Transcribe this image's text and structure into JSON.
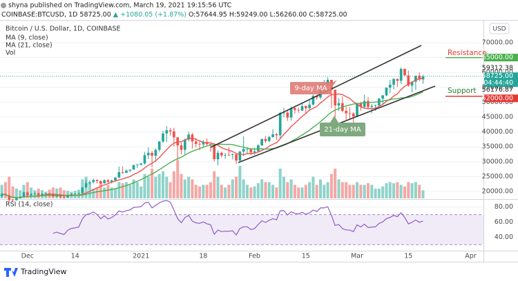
{
  "header": {
    "published": "shyna published on TradingView.com, March 19, 2021 19:15:56 UTC",
    "symbol": "COINBASE:BTCUSD, 1D",
    "last": "58725.00",
    "change": "▲ +1080.05 (+1.87%)",
    "ohlc": "O:57644.95 H:59249.00 L:56260.00 C:58725.00"
  },
  "currency_button": "USD",
  "footer": {
    "brand": "TradingView"
  },
  "chart_data": {
    "type": "candlestick",
    "title": "Bitcoin / U.S. Dollar, 1D, COINBASE",
    "categories": [
      null,
      null,
      null,
      null,
      null,
      null,
      null,
      "Dec",
      null,
      null,
      null,
      null,
      null,
      null,
      null,
      null,
      null,
      null,
      null,
      null,
      "14",
      null,
      null,
      null,
      null,
      null,
      null,
      null,
      null,
      null,
      null,
      null,
      null,
      null,
      null,
      null,
      null,
      null,
      "2021",
      null,
      null,
      null,
      null,
      null,
      null,
      null,
      null,
      null,
      null,
      null,
      null,
      null,
      null,
      null,
      null,
      "18",
      null,
      null,
      null,
      null,
      null,
      null,
      null,
      null,
      null,
      null,
      null,
      null,
      null,
      "Feb",
      null,
      null,
      null,
      null,
      null,
      null,
      null,
      null,
      null,
      null,
      null,
      null,
      null,
      "15",
      null,
      null,
      null,
      null,
      null,
      null,
      null,
      null,
      null,
      null,
      null,
      null,
      null,
      "Mar",
      null,
      null,
      null,
      null,
      null,
      null,
      null,
      null,
      null,
      null,
      null,
      null,
      null,
      "15",
      null,
      null,
      null,
      null,
      null,
      null,
      null,
      null,
      null,
      null,
      null,
      null,
      null,
      null,
      null,
      null,
      "Apr",
      null,
      null,
      null
    ],
    "open": [
      18400,
      19150,
      18730,
      17150,
      17140,
      17720,
      18180,
      19700,
      18790,
      19220,
      19440,
      18700,
      19150,
      19360,
      19170,
      18320,
      18550,
      18250,
      18040,
      18800,
      19170,
      19270,
      19440,
      21350,
      22800,
      23130,
      23860,
      23480,
      22740,
      23820,
      23250,
      23720,
      24700,
      26490,
      26280,
      27040,
      27370,
      28880,
      28990,
      29410,
      32200,
      33000,
      31990,
      34000,
      36800,
      39500,
      40600,
      40200,
      38200,
      35500,
      34000,
      37400,
      39150,
      36800,
      36000,
      35800,
      36630,
      35900,
      35500,
      30850,
      33000,
      32100,
      32300,
      32280,
      32500,
      30400,
      33400,
      34300,
      34300,
      33100,
      33530,
      35500,
      37650,
      36950,
      38300,
      39250,
      38900,
      46400,
      46500,
      44850,
      48000,
      47400,
      47200,
      48700,
      48000,
      49200,
      52150,
      51600,
      55900,
      55900,
      57500,
      54200,
      48900,
      49700,
      47100,
      46300,
      46200,
      45200,
      49600,
      48400,
      50400,
      48400,
      48750,
      48900,
      51200,
      52300,
      54900,
      55900,
      57800,
      57200,
      61200,
      59000,
      55600,
      56900,
      58900,
      57644.95,
      null,
      null,
      null,
      null,
      null,
      null,
      null,
      null,
      null,
      null,
      null,
      null,
      null,
      null,
      null,
      null
    ],
    "high": [
      19500,
      19480,
      18900,
      17500,
      17880,
      18350,
      19850,
      19900,
      19350,
      19600,
      19560,
      19400,
      19420,
      19410,
      19300,
      18950,
      18640,
      18300,
      18950,
      19410,
      19350,
      19570,
      21560,
      23780,
      23800,
      24300,
      24120,
      23800,
      24100,
      24070,
      24000,
      24790,
      28400,
      28420,
      27500,
      27400,
      29000,
      29300,
      29600,
      33300,
      34800,
      33600,
      34500,
      36950,
      40400,
      41950,
      41350,
      41400,
      38300,
      36600,
      37800,
      40100,
      39700,
      37950,
      36900,
      37300,
      37850,
      36400,
      35600,
      33800,
      33450,
      32950,
      34850,
      32900,
      32550,
      33700,
      38500,
      34900,
      34300,
      34700,
      35900,
      37700,
      38600,
      38700,
      40950,
      39700,
      46750,
      48200,
      47300,
      48600,
      48800,
      48200,
      49700,
      49000,
      50600,
      52500,
      52500,
      56350,
      57500,
      58350,
      57550,
      54200,
      51400,
      52000,
      48400,
      48300,
      46700,
      49800,
      50200,
      52600,
      51800,
      49400,
      49200,
      51400,
      52400,
      54900,
      57400,
      58100,
      58000,
      61700,
      61300,
      60600,
      56950,
      58950,
      60000,
      59249,
      null,
      null,
      null,
      null,
      null,
      null,
      null,
      null,
      null,
      null,
      null,
      null,
      null,
      null,
      null,
      null
    ],
    "low": [
      18000,
      18600,
      16300,
      16500,
      16900,
      17600,
      18170,
      18330,
      18500,
      18900,
      18550,
      18550,
      18860,
      18900,
      18170,
      18200,
      17640,
      17600,
      17920,
      18720,
      19000,
      19050,
      19300,
      21230,
      22350,
      22750,
      22700,
      22400,
      22700,
      22600,
      22700,
      23450,
      24500,
      25900,
      26100,
      26500,
      27350,
      27850,
      28700,
      29030,
      30900,
      28130,
      30000,
      33400,
      36300,
      36600,
      38800,
      35100,
      30300,
      32500,
      32400,
      36800,
      34400,
      34800,
      33900,
      34800,
      35200,
      33400,
      30100,
      28800,
      31400,
      30950,
      31950,
      30800,
      29250,
      29900,
      31900,
      32600,
      32200,
      32300,
      33400,
      35370,
      36300,
      36600,
      38100,
      37350,
      37950,
      45000,
      43700,
      43800,
      46200,
      46400,
      47000,
      46200,
      47000,
      48900,
      50800,
      50950,
      53700,
      55500,
      48000,
      45000,
      47000,
      46700,
      44100,
      44200,
      43000,
      45000,
      47100,
      48100,
      47500,
      46300,
      47100,
      48550,
      49300,
      52000,
      53000,
      54300,
      55100,
      56100,
      58950,
      55200,
      53300,
      54100,
      57000,
      56260,
      null,
      null,
      null,
      null,
      null,
      null,
      null,
      null,
      null,
      null,
      null,
      null,
      null,
      null,
      null,
      null
    ],
    "close": [
      19150,
      18730,
      17150,
      17140,
      17720,
      18180,
      19700,
      18790,
      19220,
      19440,
      18700,
      19150,
      19360,
      19170,
      18320,
      18550,
      18250,
      18040,
      18800,
      19170,
      19270,
      19440,
      21350,
      22800,
      23130,
      23860,
      23480,
      22740,
      23820,
      23250,
      23720,
      24700,
      26490,
      26280,
      27040,
      27370,
      28880,
      28990,
      29410,
      32200,
      33000,
      31990,
      34000,
      36800,
      39500,
      40600,
      40200,
      38200,
      35500,
      34000,
      37400,
      39150,
      36800,
      36000,
      35800,
      36630,
      35900,
      35500,
      30850,
      33000,
      32100,
      32300,
      32280,
      32500,
      30400,
      33400,
      34300,
      34300,
      33100,
      33530,
      35500,
      37650,
      36950,
      38300,
      39250,
      38900,
      46400,
      46500,
      44850,
      48000,
      47400,
      47200,
      48700,
      48000,
      49200,
      52150,
      51600,
      55900,
      55900,
      57500,
      54200,
      48900,
      49700,
      47100,
      46300,
      46200,
      45200,
      49600,
      48400,
      50400,
      48400,
      48750,
      48900,
      51200,
      52300,
      54900,
      55900,
      57800,
      57200,
      61200,
      59000,
      55600,
      56900,
      58900,
      57644.95,
      58725,
      null,
      null,
      null,
      null,
      null,
      null,
      null,
      null,
      null,
      null,
      null,
      null,
      null,
      null,
      null,
      null
    ],
    "volume": [
      25,
      30,
      40,
      22,
      18,
      15,
      25,
      30,
      20,
      15,
      18,
      15,
      12,
      16,
      20,
      18,
      20,
      15,
      14,
      12,
      14,
      16,
      35,
      40,
      28,
      18,
      20,
      30,
      20,
      25,
      20,
      18,
      30,
      28,
      30,
      25,
      35,
      30,
      22,
      45,
      40,
      55,
      40,
      45,
      50,
      40,
      30,
      50,
      70,
      45,
      35,
      40,
      35,
      25,
      22,
      25,
      25,
      30,
      50,
      40,
      25,
      20,
      25,
      35,
      40,
      60,
      35,
      25,
      20,
      22,
      28,
      35,
      30,
      30,
      25,
      20,
      55,
      40,
      30,
      35,
      25,
      20,
      20,
      25,
      30,
      40,
      25,
      35,
      25,
      30,
      45,
      55,
      35,
      30,
      30,
      25,
      25,
      30,
      25,
      25,
      28,
      25,
      18,
      18,
      22,
      28,
      30,
      28,
      30,
      25,
      22,
      30,
      28,
      30,
      25,
      15,
      null,
      null,
      null,
      null,
      null,
      null,
      null,
      null,
      null,
      null,
      null,
      null,
      null,
      null,
      null,
      null
    ],
    "colors": {
      "up": "#26a69a",
      "down": "#ef5350",
      "volume_up": "#8fd3ca",
      "volume_down": "#f5a7a5"
    },
    "ylim": [
      17700,
      77400
    ],
    "yticks": [
      {
        "value": 20000,
        "label": "20000.00"
      },
      {
        "value": 25000,
        "label": "25000.00"
      },
      {
        "value": 30000,
        "label": "30000.00"
      },
      {
        "value": 35000,
        "label": "35000.00"
      },
      {
        "value": 40000,
        "label": "40000.00"
      },
      {
        "value": 45000,
        "label": "45000.00"
      },
      {
        "value": 50000,
        "label": "50000.00"
      },
      {
        "value": 55000,
        "label": "55000.00"
      },
      {
        "value": 60000,
        "label": "60000.00"
      },
      {
        "value": 65000,
        "label": "65000.00"
      },
      {
        "value": 70000,
        "label": "70000.00"
      }
    ],
    "grid": true,
    "indicators": [
      {
        "name": "MA (9, close)",
        "period": 9,
        "color": "#f0524f"
      },
      {
        "name": "MA (21, close)",
        "period": 21,
        "color": "#4caf50"
      }
    ],
    "volume_label": "Vol",
    "rsi": {
      "name": "RSI (14, close)",
      "period": 14,
      "color": "#8e5bc7",
      "ylim": [
        22,
        88
      ],
      "band": [
        30,
        70
      ],
      "yticks": [
        {
          "value": 80,
          "label": "80.00"
        },
        {
          "value": 60,
          "label": "60.00"
        },
        {
          "value": 40,
          "label": "40.00"
        }
      ]
    },
    "price_labels": [
      {
        "value": 65000,
        "label": "65000.00",
        "color": "#4caf50"
      },
      {
        "value": 59312.38,
        "label": "59312.38",
        "color": null
      },
      {
        "value": 58725,
        "label": "58725.00",
        "color": "#26a69a",
        "countdown": "04:44:40"
      },
      {
        "value": 56176.87,
        "label": "56176.87",
        "color": null
      },
      {
        "value": 52000,
        "label": "52000.00",
        "color": "#e53935"
      }
    ],
    "annotations": {
      "resistance": "Resistance",
      "support": "Support",
      "ma9_tag": "9-day MA",
      "ma21_tag": "21-day MA"
    }
  }
}
